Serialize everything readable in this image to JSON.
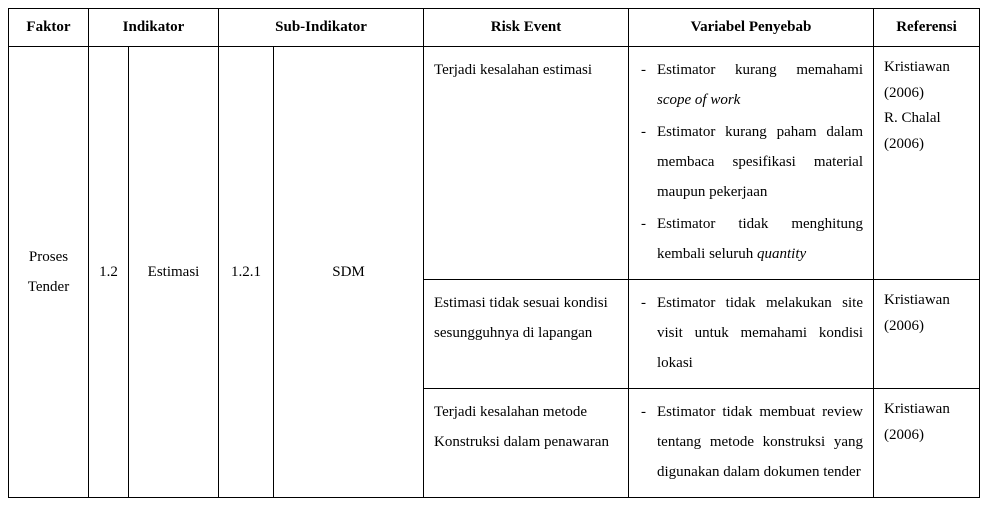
{
  "headers": {
    "faktor": "Faktor",
    "indikator": "Indikator",
    "sub_indikator": "Sub-Indikator",
    "risk_event": "Risk Event",
    "variabel": "Variabel Penyebab",
    "referensi": "Referensi"
  },
  "row": {
    "faktor": "Proses Tender",
    "ind_code": "1.2",
    "ind_name": "Estimasi",
    "sub_code": "1.2.1",
    "sub_name": "SDM"
  },
  "events": [
    {
      "name": "Terjadi kesalahan estimasi",
      "causes": [
        {
          "pre": "Estimator kurang memahami ",
          "it": "scope of work",
          "post": ""
        },
        {
          "pre": "Estimator kurang paham dalam membaca spesifikasi material maupun pekerjaan",
          "it": "",
          "post": ""
        },
        {
          "pre": "Estimator  tidak menghitung kembali seluruh ",
          "it": "quantity",
          "post": ""
        }
      ],
      "ref": "Kristiawan (2006)\nR. Chalal (2006)"
    },
    {
      "name": "Estimasi tidak sesuai kondisi sesungguhnya di lapangan",
      "causes": [
        {
          "pre": "Estimator  tidak  melakukan site visit untuk memahami kondisi lokasi",
          "it": "",
          "post": ""
        }
      ],
      "ref": "Kristiawan (2006)"
    },
    {
      "name": "Terjadi   kesalahan   metode Konstruksi dalam penawaran",
      "causes": [
        {
          "pre": "Estimator tidak membuat review tentang metode konstruksi yang digunakan dalam dokumen tender",
          "it": "",
          "post": ""
        }
      ],
      "ref": "Kristiawan (2006)"
    }
  ]
}
